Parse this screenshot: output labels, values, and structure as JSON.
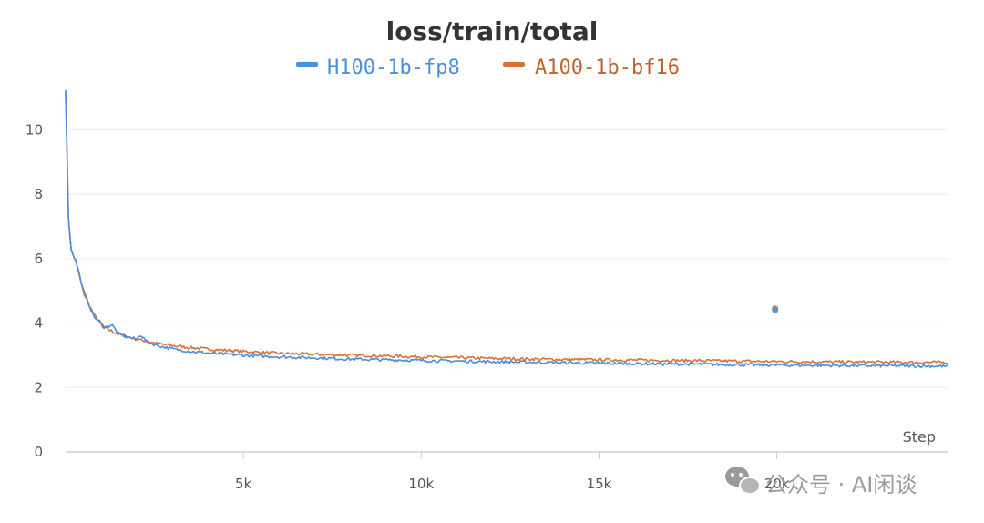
{
  "chart_data": {
    "type": "line",
    "title": "loss/train/total",
    "xlabel": "Step",
    "ylabel": "",
    "xlim": [
      0,
      24800
    ],
    "ylim": [
      0,
      11.2
    ],
    "x_ticks": [
      5000,
      10000,
      15000,
      20000
    ],
    "x_tick_labels": [
      "5k",
      "10k",
      "15k",
      "20k"
    ],
    "y_ticks": [
      0,
      2,
      4,
      6,
      8,
      10
    ],
    "y_tick_labels": [
      "0",
      "2",
      "4",
      "6",
      "8",
      "10"
    ],
    "grid": true,
    "legend_position": "top-center",
    "series": [
      {
        "name": "H100-1b-fp8",
        "color": "#4a8fdb",
        "x": [
          0,
          80,
          150,
          300,
          500,
          800,
          1100,
          1300,
          1500,
          1800,
          2000,
          2100,
          2300,
          2600,
          3000,
          3500,
          4000,
          5000,
          6000,
          7000,
          8000,
          9000,
          10000,
          12000,
          14000,
          16000,
          18000,
          19500,
          20500,
          22000,
          24000,
          24800
        ],
        "y": [
          11.2,
          7.3,
          6.3,
          5.9,
          5.0,
          4.2,
          3.85,
          3.95,
          3.65,
          3.55,
          3.5,
          3.65,
          3.4,
          3.3,
          3.2,
          3.12,
          3.07,
          3.0,
          2.95,
          2.92,
          2.88,
          2.86,
          2.84,
          2.8,
          2.77,
          2.74,
          2.72,
          2.7,
          2.69,
          2.68,
          2.67,
          2.66
        ]
      },
      {
        "name": "A100-1b-bf16",
        "color": "#d9703a",
        "x": [
          0,
          80,
          150,
          300,
          500,
          800,
          1100,
          1500,
          2000,
          2600,
          3000,
          3500,
          4000,
          5000,
          6000,
          7000,
          8000,
          9000,
          10000,
          12000,
          14000,
          16000,
          18000,
          19500,
          20500,
          22000,
          24000,
          24800
        ],
        "y": [
          11.2,
          7.3,
          6.3,
          5.85,
          4.95,
          4.25,
          3.85,
          3.65,
          3.5,
          3.36,
          3.3,
          3.24,
          3.19,
          3.12,
          3.06,
          3.03,
          3.0,
          2.98,
          2.95,
          2.9,
          2.87,
          2.85,
          2.83,
          2.81,
          2.8,
          2.79,
          2.78,
          2.78
        ]
      }
    ],
    "annotations": [
      {
        "kind": "outlier-point",
        "x": 19950,
        "y": 4.45,
        "color": "#d9703a"
      },
      {
        "kind": "outlier-point",
        "x": 19950,
        "y": 4.4,
        "color": "#4a8fdb"
      }
    ]
  },
  "watermark": {
    "text": "公众号 · AI闲谈",
    "icon": "wechat-icon"
  }
}
